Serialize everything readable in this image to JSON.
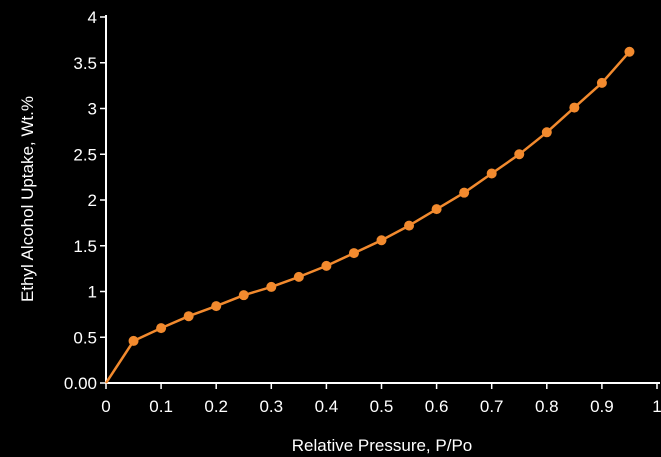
{
  "chart_data": {
    "type": "line",
    "title": "",
    "xlabel": "Relative Pressure, P/Po",
    "ylabel": "Ethyl Alcohol Uptake, Wt.%",
    "xlim": [
      0,
      1
    ],
    "ylim": [
      0,
      4
    ],
    "x_ticks": [
      {
        "value": 0,
        "label": "0"
      },
      {
        "value": 0.1,
        "label": "0.1"
      },
      {
        "value": 0.2,
        "label": "0.2"
      },
      {
        "value": 0.3,
        "label": "0.3"
      },
      {
        "value": 0.4,
        "label": "0.4"
      },
      {
        "value": 0.5,
        "label": "0.5"
      },
      {
        "value": 0.6,
        "label": "0.6"
      },
      {
        "value": 0.7,
        "label": "0.7"
      },
      {
        "value": 0.8,
        "label": "0.8"
      },
      {
        "value": 0.9,
        "label": "0.9"
      },
      {
        "value": 1,
        "label": "1"
      }
    ],
    "y_ticks": [
      {
        "value": 0,
        "label": "0.00"
      },
      {
        "value": 0.5,
        "label": "0.5"
      },
      {
        "value": 1,
        "label": "1"
      },
      {
        "value": 1.5,
        "label": "1.5"
      },
      {
        "value": 2,
        "label": "2"
      },
      {
        "value": 2.5,
        "label": "2.5"
      },
      {
        "value": 3,
        "label": "3"
      },
      {
        "value": 3.5,
        "label": "3.5"
      },
      {
        "value": 4,
        "label": "4"
      }
    ],
    "grid": false,
    "legend": "none",
    "colors": {
      "background": "#000000",
      "axis": "#ffffff",
      "text": "#ffffff",
      "series": "#f28a2e"
    },
    "series": [
      {
        "x": [
          0,
          0.05,
          0.1,
          0.15,
          0.2,
          0.25,
          0.3,
          0.35,
          0.4,
          0.45,
          0.5,
          0.55,
          0.6,
          0.65,
          0.7,
          0.75,
          0.8,
          0.85,
          0.9,
          0.95
        ],
        "y": [
          0,
          0.46,
          0.6,
          0.73,
          0.84,
          0.96,
          1.05,
          1.16,
          1.28,
          1.42,
          1.56,
          1.72,
          1.9,
          2.08,
          2.29,
          2.5,
          2.74,
          3.01,
          3.28,
          3.62
        ],
        "markers": [
          false,
          true,
          true,
          true,
          true,
          true,
          true,
          true,
          true,
          true,
          true,
          true,
          true,
          true,
          true,
          true,
          true,
          true,
          true,
          true
        ]
      }
    ]
  }
}
